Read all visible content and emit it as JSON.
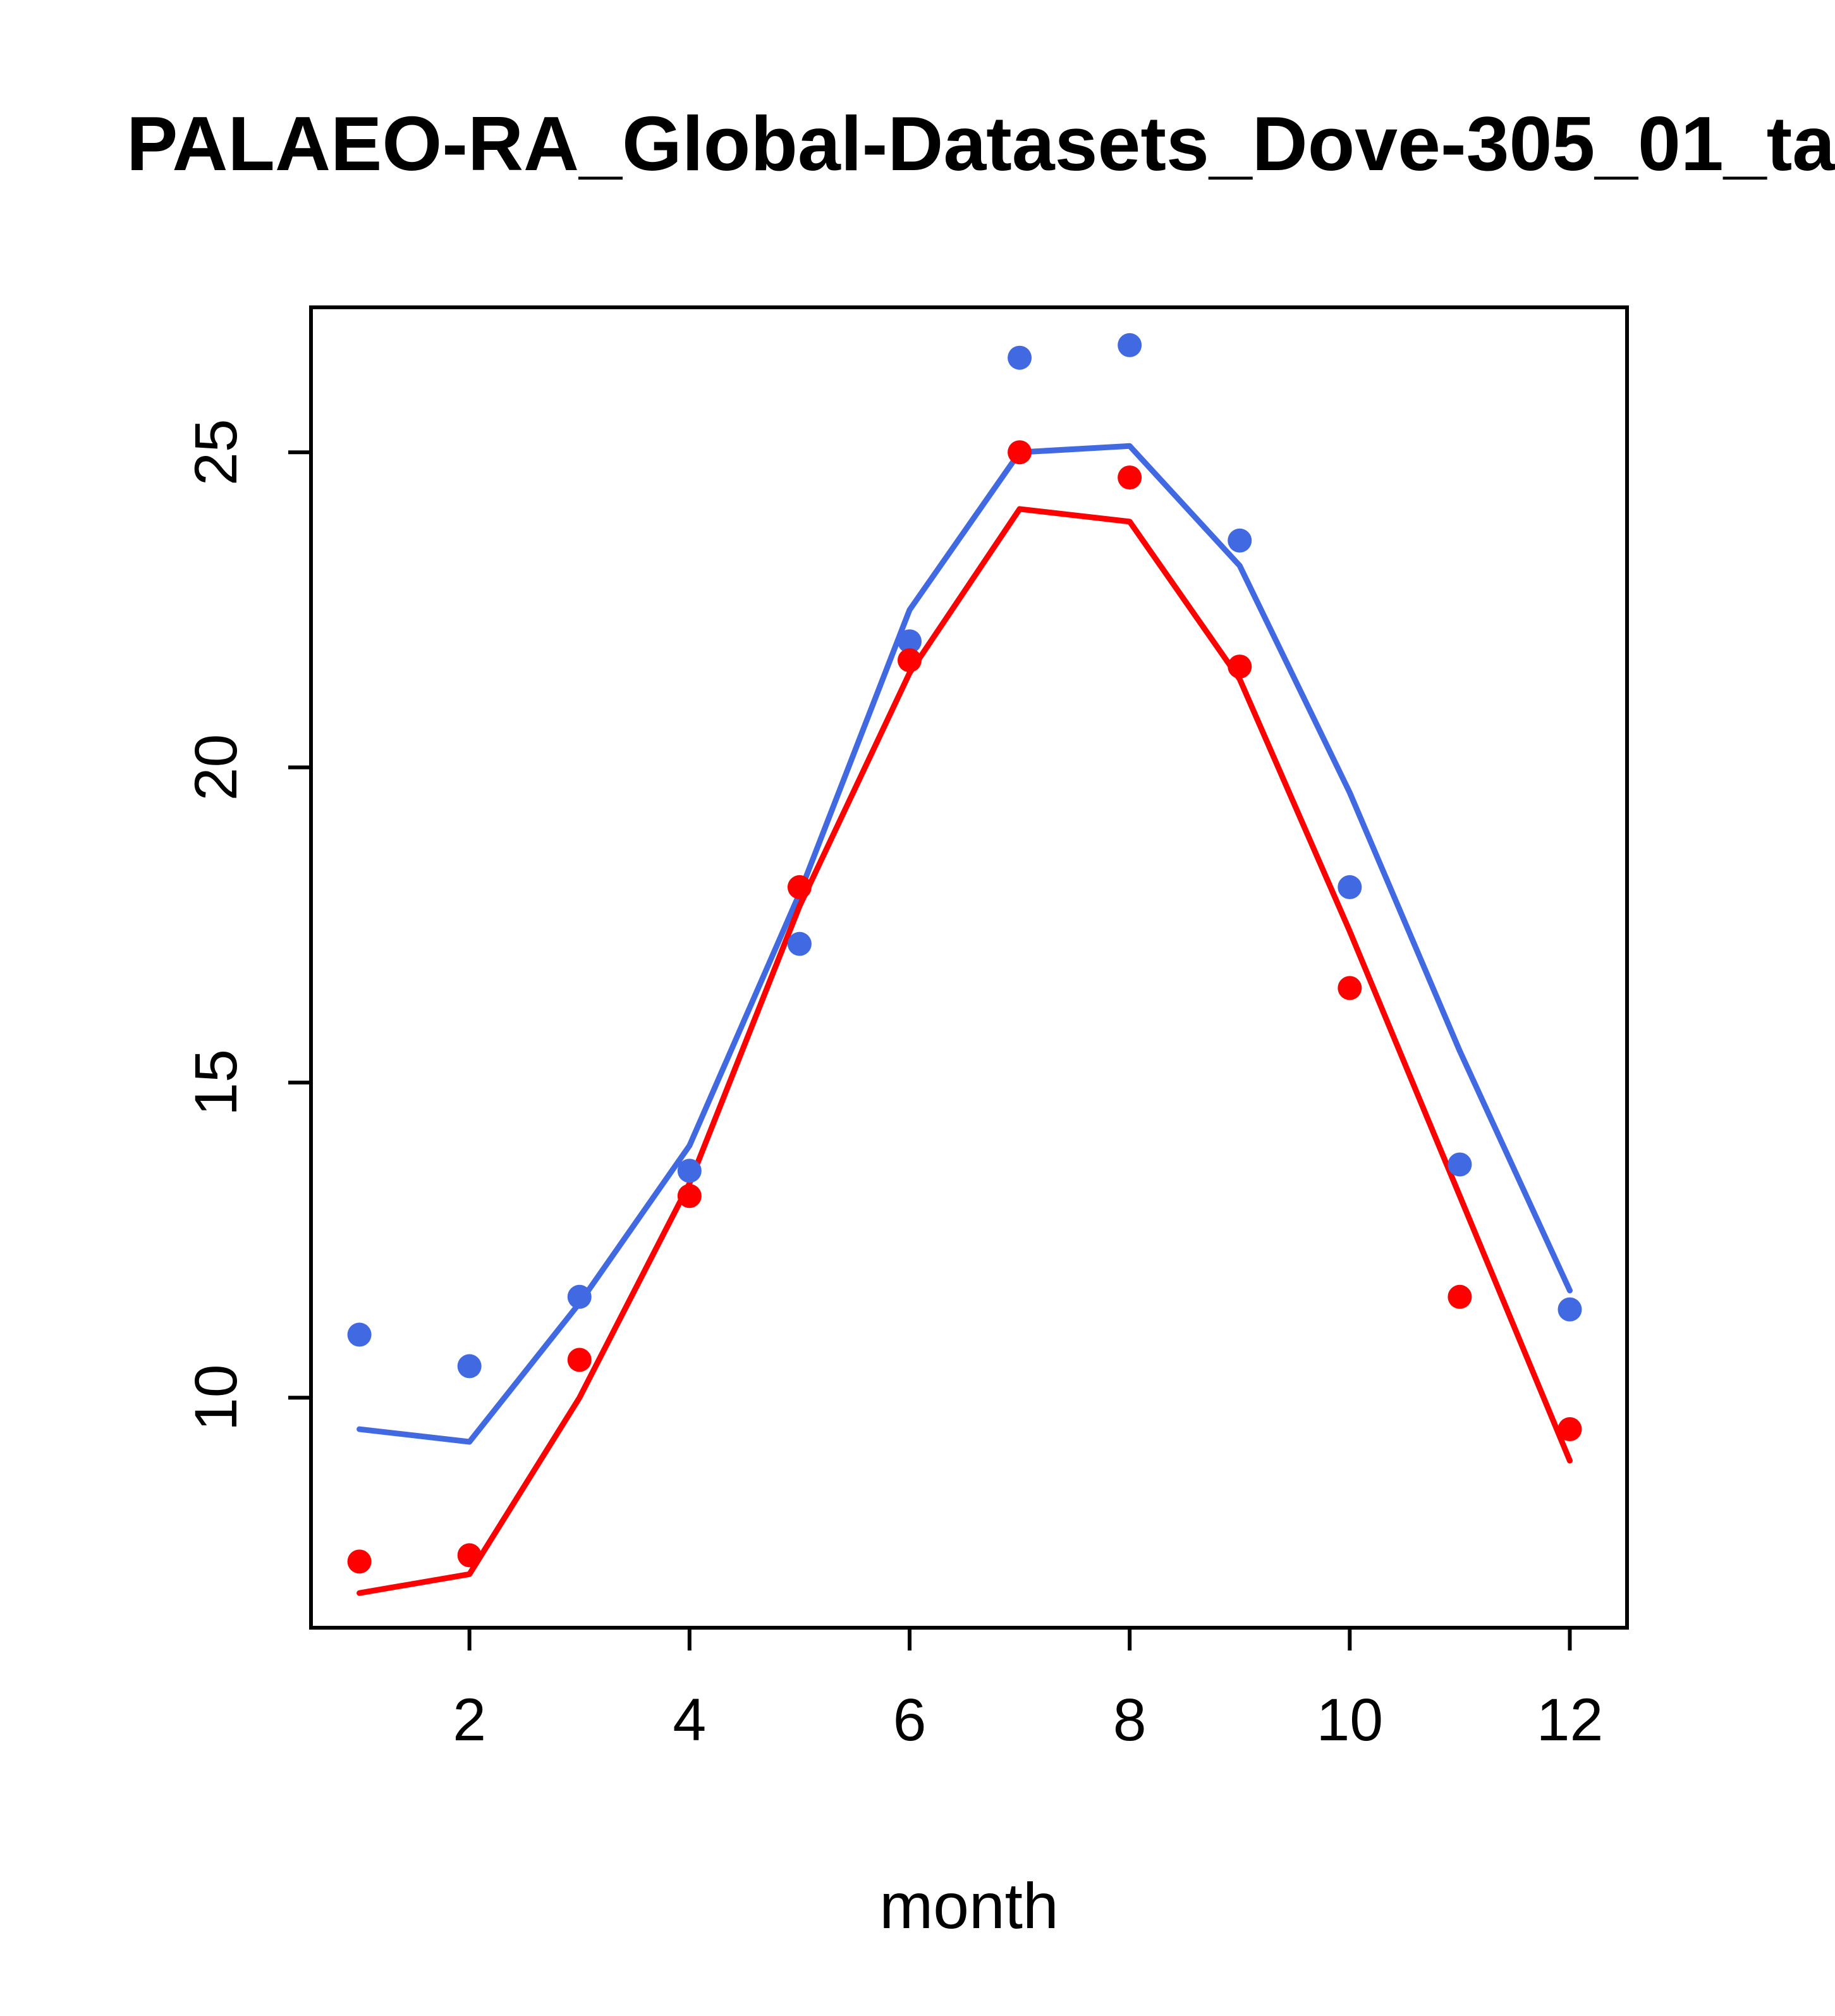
{
  "page": {
    "background": "#ffffff"
  },
  "chart_data": {
    "type": "line",
    "title": "PALAEO-RA_Global-Datasets_Dove-305_01_ta",
    "xlabel": "month",
    "ylabel": "",
    "x": [
      1,
      2,
      3,
      4,
      5,
      6,
      7,
      8,
      9,
      10,
      11,
      12
    ],
    "xlim": [
      0.56,
      12.52
    ],
    "ylim": [
      6.35,
      27.3
    ],
    "x_ticks": [
      2,
      4,
      6,
      8,
      10,
      12
    ],
    "y_ticks": [
      10,
      15,
      20,
      25
    ],
    "grid": false,
    "legend": "none",
    "series": [
      {
        "name": "blue-line",
        "style": "line",
        "color": "#4169E1",
        "values": [
          9.5,
          9.3,
          11.5,
          14.0,
          18.0,
          22.5,
          25.0,
          25.1,
          23.2,
          19.6,
          15.5,
          11.7
        ]
      },
      {
        "name": "red-line",
        "style": "line",
        "color": "#FF0000",
        "values": [
          6.9,
          7.2,
          10.0,
          13.4,
          17.8,
          21.5,
          24.1,
          23.9,
          21.4,
          17.4,
          13.2,
          9.0
        ]
      },
      {
        "name": "blue-points",
        "style": "points",
        "color": "#4169E1",
        "values": [
          11.0,
          10.5,
          11.6,
          13.6,
          17.2,
          22.0,
          26.5,
          26.7,
          23.6,
          18.1,
          13.7,
          11.4
        ]
      },
      {
        "name": "red-points",
        "style": "points",
        "color": "#FF0000",
        "values": [
          7.4,
          7.5,
          10.6,
          13.2,
          18.1,
          21.7,
          25.0,
          24.6,
          21.6,
          16.5,
          11.6,
          9.5
        ]
      }
    ]
  }
}
